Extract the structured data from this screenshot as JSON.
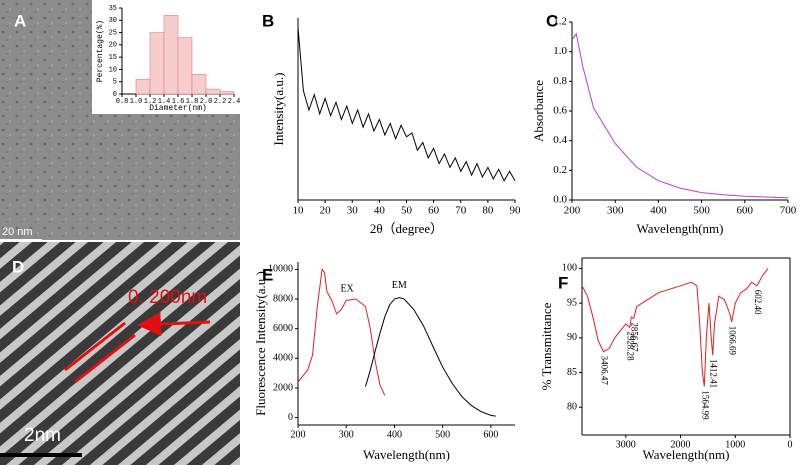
{
  "chart_data": [
    {
      "type": "histogram",
      "panel": "A",
      "scale_bar": "20 nm",
      "xlabel": "Diameter(nm)",
      "ylabel": "Percentage(%)",
      "bins": [
        1.0,
        1.2,
        1.4,
        1.6,
        1.8,
        2.0,
        2.2,
        2.4
      ],
      "values": [
        6,
        25,
        32,
        23,
        8,
        2,
        1
      ],
      "color": "#f6cccc",
      "edge_color": "#e08080",
      "xlim": [
        0.8,
        2.4
      ],
      "xticks": [
        {
          "value": 0.8,
          "label": "0.8"
        },
        {
          "value": 1.0,
          "label": "1.0"
        },
        {
          "value": 1.2,
          "label": "1.2"
        },
        {
          "value": 1.4,
          "label": "1.4"
        },
        {
          "value": 1.6,
          "label": "1.6"
        },
        {
          "value": 1.8,
          "label": "1.8"
        },
        {
          "value": 2.0,
          "label": "2.0"
        },
        {
          "value": 2.2,
          "label": "2.2"
        },
        {
          "value": 2.4,
          "label": "2.4"
        }
      ],
      "ylim": [
        0,
        35
      ],
      "yticks": [
        0,
        5,
        10,
        15,
        20,
        25,
        30,
        35
      ]
    },
    {
      "type": "line",
      "panel": "B",
      "xlabel": "2θ（degree）",
      "ylabel": "Intensity(a.u.)",
      "color": "#000000",
      "x": [
        10,
        12,
        14,
        16,
        18,
        20,
        22,
        24,
        26,
        28,
        30,
        32,
        34,
        36,
        38,
        40,
        42,
        44,
        46,
        48,
        50,
        52,
        54,
        56,
        58,
        60,
        62,
        64,
        66,
        68,
        70,
        72,
        74,
        76,
        78,
        80,
        82,
        84,
        86,
        88,
        90
      ],
      "values": [
        95,
        62,
        52,
        60,
        50,
        58,
        49,
        56,
        47,
        54,
        45,
        52,
        43,
        50,
        41,
        47,
        39,
        45,
        37,
        44,
        38,
        40,
        31,
        35,
        27,
        32,
        24,
        29,
        22,
        27,
        20,
        25,
        18,
        24,
        17,
        22,
        16,
        21,
        15,
        20,
        15
      ],
      "xlim": [
        10,
        90
      ],
      "xticks": [
        10,
        20,
        30,
        40,
        50,
        60,
        70,
        80,
        90
      ],
      "ylim": [
        5,
        100
      ]
    },
    {
      "type": "line",
      "panel": "C",
      "xlabel": "Wavelength(nm)",
      "ylabel": "Absorbance",
      "color": "#c03ccf",
      "x": [
        200,
        210,
        225,
        250,
        275,
        300,
        350,
        400,
        450,
        500,
        550,
        600,
        650,
        700
      ],
      "values": [
        1.08,
        1.12,
        0.9,
        0.62,
        0.5,
        0.38,
        0.22,
        0.13,
        0.08,
        0.05,
        0.035,
        0.025,
        0.02,
        0.015
      ],
      "xlim": [
        200,
        700
      ],
      "xticks": [
        200,
        300,
        400,
        500,
        600,
        700
      ],
      "ylim": [
        0,
        1.2
      ],
      "yticks": [
        {
          "value": 0,
          "label": "0.0"
        },
        {
          "value": 0.2,
          "label": "0.2"
        },
        {
          "value": 0.4,
          "label": "0.4"
        },
        {
          "value": 0.6,
          "label": "0.6"
        },
        {
          "value": 0.8,
          "label": "0.8"
        },
        {
          "value": 1.0,
          "label": "1.0"
        },
        {
          "value": 1.2,
          "label": "1.2"
        }
      ]
    },
    {
      "type": "image",
      "panel": "D",
      "annotation": "0. 200nm",
      "scale_bar": "2nm"
    },
    {
      "type": "line",
      "panel": "E",
      "xlabel": "Wavelength(nm)",
      "ylabel": "Fluorescence Intensity(a.u.)",
      "series": [
        {
          "name": "EX",
          "color": "#e02020",
          "x": [
            200,
            220,
            230,
            240,
            250,
            255,
            260,
            270,
            280,
            290,
            300,
            320,
            340,
            350,
            360,
            370,
            380
          ],
          "values": [
            2400,
            3200,
            4200,
            7500,
            10000,
            9800,
            8500,
            7900,
            7000,
            7300,
            7900,
            8000,
            7500,
            6000,
            3800,
            2200,
            1500
          ]
        },
        {
          "name": "EM",
          "color": "#000000",
          "x": [
            340,
            350,
            360,
            370,
            380,
            390,
            400,
            410,
            420,
            440,
            460,
            480,
            500,
            520,
            540,
            560,
            580,
            600,
            610
          ],
          "values": [
            2100,
            3200,
            4500,
            5700,
            6800,
            7600,
            8000,
            8100,
            8000,
            7300,
            6200,
            4800,
            3400,
            2300,
            1400,
            800,
            400,
            150,
            100
          ]
        }
      ],
      "xlim": [
        200,
        650
      ],
      "xticks": [
        200,
        300,
        400,
        500,
        600
      ],
      "ylim": [
        -500,
        10500
      ],
      "yticks": [
        0,
        2000,
        4000,
        6000,
        8000,
        10000
      ]
    },
    {
      "type": "line",
      "panel": "F",
      "xlabel": "Wavelength(nm)",
      "ylabel": "% Transmittance",
      "color": "#e02020",
      "x": [
        3800,
        3700,
        3600,
        3500,
        3406,
        3300,
        3200,
        3000,
        2928,
        2900,
        2856,
        2800,
        2600,
        2400,
        2000,
        1800,
        1700,
        1650,
        1600,
        1565,
        1530,
        1480,
        1440,
        1412,
        1380,
        1300,
        1200,
        1100,
        1067,
        1000,
        900,
        800,
        700,
        602,
        500,
        400
      ],
      "values": [
        97.5,
        96,
        93,
        89.5,
        88,
        88.5,
        90,
        92,
        91.5,
        93,
        92.8,
        94.5,
        95.5,
        96.5,
        97.5,
        98,
        97.5,
        92,
        85,
        83,
        90,
        95,
        90,
        87.5,
        92,
        96,
        95.5,
        93.5,
        92.3,
        95,
        96.5,
        97,
        98,
        97.5,
        99,
        100
      ],
      "annotations": [
        {
          "value": 3406.47,
          "label": "3406.47"
        },
        {
          "value": 2928.28,
          "label": "2928.28"
        },
        {
          "value": 2856.67,
          "label": "2856.67"
        },
        {
          "value": 1564.99,
          "label": "1564.99"
        },
        {
          "value": 1412.41,
          "label": "1412.41"
        },
        {
          "value": 1066.69,
          "label": "1066.69"
        },
        {
          "value": 602.4,
          "label": "602.40"
        }
      ],
      "xlim": [
        3800,
        0
      ],
      "xticks": [
        3000,
        2000,
        1000,
        0
      ],
      "ylim": [
        76,
        101.5
      ],
      "yticks": [
        80,
        85,
        90,
        95,
        100
      ]
    }
  ]
}
